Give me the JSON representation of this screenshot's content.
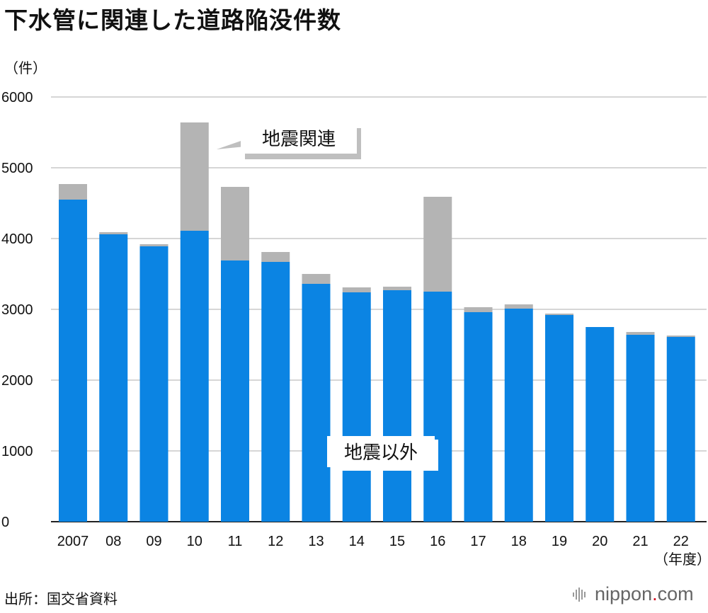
{
  "header": {
    "title": "下水管に関連した道路陥没件数",
    "unit_label": "（件）",
    "x_unit_label": "（年度）",
    "source": "出所：国交省資料",
    "brand_prefix": "nippon",
    "brand_dot": ".",
    "brand_suffix": "com"
  },
  "chart_data": {
    "type": "bar",
    "stacked": true,
    "title": "下水管に関連した道路陥没件数",
    "ylabel": "（件）",
    "xlabel": "（年度）",
    "ylim": [
      0,
      6000
    ],
    "yticks": [
      0,
      1000,
      2000,
      3000,
      4000,
      5000,
      6000
    ],
    "grid": true,
    "categories": [
      "2007",
      "08",
      "09",
      "10",
      "11",
      "12",
      "13",
      "14",
      "15",
      "16",
      "17",
      "18",
      "19",
      "20",
      "21",
      "22"
    ],
    "series": [
      {
        "name": "地震以外",
        "color": "#0b84e3",
        "values": [
          4550,
          4060,
          3890,
          4110,
          3690,
          3670,
          3360,
          3240,
          3270,
          3250,
          2960,
          3010,
          2920,
          2750,
          2640,
          2610
        ]
      },
      {
        "name": "地震関連",
        "color": "#b4b4b4",
        "values": [
          220,
          30,
          30,
          1530,
          1040,
          140,
          140,
          70,
          50,
          1340,
          70,
          60,
          20,
          0,
          40,
          20
        ]
      }
    ],
    "annotations": [
      {
        "text": "地震関連",
        "target": "10"
      },
      {
        "text": "地震以外",
        "target": "14"
      }
    ]
  }
}
